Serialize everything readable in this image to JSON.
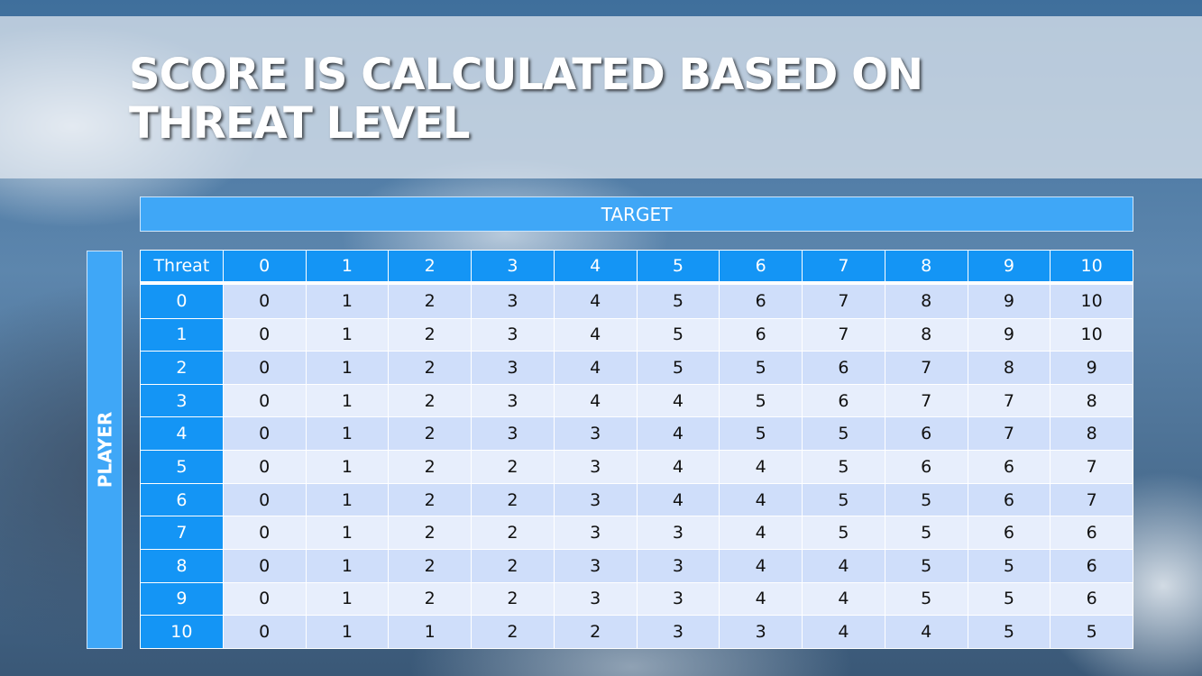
{
  "title": "SCORE IS CALCULATED BASED ON THREAT LEVEL",
  "target_label": "TARGET",
  "player_label": "PLAYER",
  "accent_color": "#1495f5",
  "table": {
    "corner": "Threat",
    "columns": [
      "0",
      "1",
      "2",
      "3",
      "4",
      "5",
      "6",
      "7",
      "8",
      "9",
      "10"
    ],
    "rows": [
      {
        "threat": "0",
        "values": [
          "0",
          "1",
          "2",
          "3",
          "4",
          "5",
          "6",
          "7",
          "8",
          "9",
          "10"
        ]
      },
      {
        "threat": "1",
        "values": [
          "0",
          "1",
          "2",
          "3",
          "4",
          "5",
          "6",
          "7",
          "8",
          "9",
          "10"
        ]
      },
      {
        "threat": "2",
        "values": [
          "0",
          "1",
          "2",
          "3",
          "4",
          "5",
          "5",
          "6",
          "7",
          "8",
          "9"
        ]
      },
      {
        "threat": "3",
        "values": [
          "0",
          "1",
          "2",
          "3",
          "4",
          "4",
          "5",
          "6",
          "7",
          "7",
          "8"
        ]
      },
      {
        "threat": "4",
        "values": [
          "0",
          "1",
          "2",
          "3",
          "3",
          "4",
          "5",
          "5",
          "6",
          "7",
          "8"
        ]
      },
      {
        "threat": "5",
        "values": [
          "0",
          "1",
          "2",
          "2",
          "3",
          "4",
          "4",
          "5",
          "6",
          "6",
          "7"
        ]
      },
      {
        "threat": "6",
        "values": [
          "0",
          "1",
          "2",
          "2",
          "3",
          "4",
          "4",
          "5",
          "5",
          "6",
          "7"
        ]
      },
      {
        "threat": "7",
        "values": [
          "0",
          "1",
          "2",
          "2",
          "3",
          "3",
          "4",
          "5",
          "5",
          "6",
          "6"
        ]
      },
      {
        "threat": "8",
        "values": [
          "0",
          "1",
          "2",
          "2",
          "3",
          "3",
          "4",
          "4",
          "5",
          "5",
          "6"
        ]
      },
      {
        "threat": "9",
        "values": [
          "0",
          "1",
          "2",
          "2",
          "3",
          "3",
          "4",
          "4",
          "5",
          "5",
          "6"
        ]
      },
      {
        "threat": "10",
        "values": [
          "0",
          "1",
          "1",
          "2",
          "2",
          "3",
          "3",
          "4",
          "4",
          "5",
          "5"
        ]
      }
    ]
  }
}
